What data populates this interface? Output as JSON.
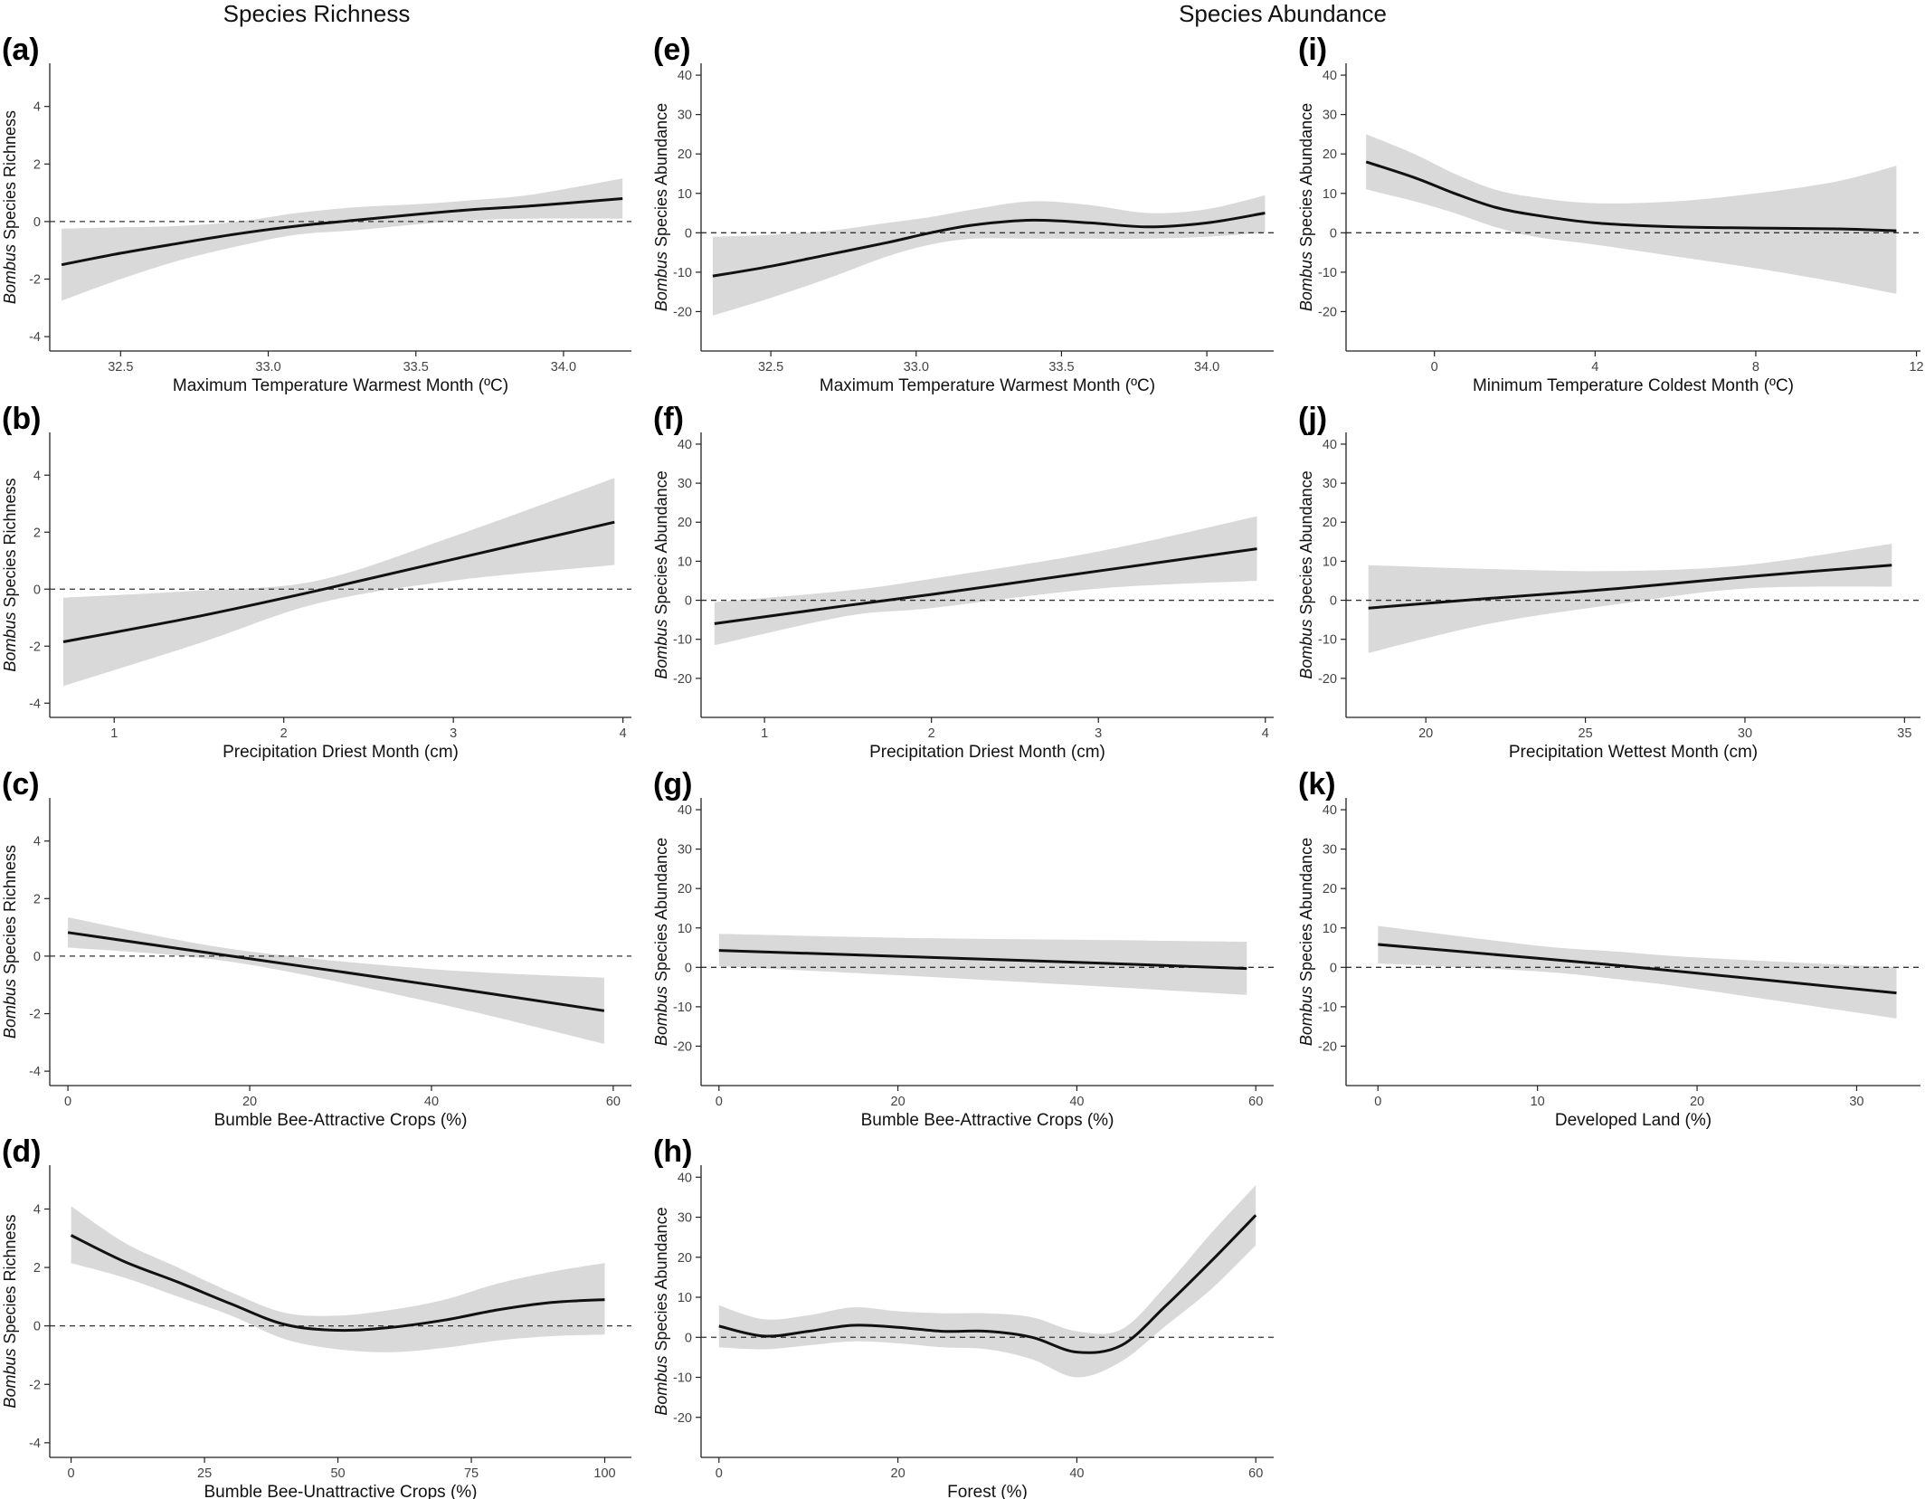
{
  "headers": {
    "richness": "Species Richness",
    "abundance": "Species Abundance"
  },
  "colors": {
    "band": "#d9d9d9",
    "line": "#111111",
    "zero_line": "#333333",
    "axis": "#222222"
  },
  "chart_data": [
    {
      "type": "line",
      "panel": "(a)",
      "title": "",
      "xlabel": "Maximum Temperature Warmest Month (ºC)",
      "ylabel_italic": "Bombus",
      "ylabel_rest": " Species Richness",
      "xlim": [
        32.26,
        34.23
      ],
      "ylim": [
        -4.5,
        5.5
      ],
      "xticks": [
        32.5,
        33.0,
        33.5,
        34.0
      ],
      "xtick_labels": [
        "32.5",
        "33.0",
        "33.5",
        "34.0"
      ],
      "yticks": [
        -4,
        -2,
        0,
        2,
        4
      ],
      "ytick_labels": [
        "-4",
        "-2",
        "0",
        "2",
        "4"
      ],
      "reference_line": 0,
      "x": [
        32.3,
        32.5,
        32.7,
        32.9,
        33.1,
        33.3,
        33.5,
        33.7,
        33.9,
        34.2
      ],
      "fit": [
        -1.5,
        -1.1,
        -0.75,
        -0.42,
        -0.15,
        0.05,
        0.25,
        0.42,
        0.55,
        0.8
      ],
      "lower": [
        -2.75,
        -2.0,
        -1.35,
        -0.85,
        -0.45,
        -0.3,
        -0.1,
        0.05,
        0.1,
        0.1
      ],
      "upper": [
        -0.25,
        -0.2,
        -0.15,
        0.0,
        0.3,
        0.5,
        0.6,
        0.75,
        0.95,
        1.5
      ]
    },
    {
      "type": "line",
      "panel": "(b)",
      "title": "",
      "xlabel": "Precipitation Driest Month (cm)",
      "ylabel_italic": "Bombus",
      "ylabel_rest": " Species Richness",
      "xlim": [
        0.62,
        4.05
      ],
      "ylim": [
        -4.5,
        5.5
      ],
      "xticks": [
        1,
        2,
        3,
        4
      ],
      "xtick_labels": [
        "1",
        "2",
        "3",
        "4"
      ],
      "yticks": [
        -4,
        -2,
        0,
        2,
        4
      ],
      "ytick_labels": [
        "-4",
        "-2",
        "0",
        "2",
        "4"
      ],
      "reference_line": 0,
      "x": [
        0.7,
        1.5,
        2.2,
        3.0,
        3.95
      ],
      "fit": [
        -1.85,
        -0.95,
        -0.05,
        1.05,
        2.35
      ],
      "lower": [
        -3.4,
        -1.9,
        -0.5,
        0.3,
        0.85
      ],
      "upper": [
        -0.3,
        -0.05,
        0.3,
        1.85,
        3.9
      ]
    },
    {
      "type": "line",
      "panel": "(c)",
      "title": "",
      "xlabel": "Bumble Bee-Attractive Crops (%)",
      "ylabel_italic": "Bombus",
      "ylabel_rest": " Species Richness",
      "xlim": [
        -2,
        62
      ],
      "ylim": [
        -4.5,
        5.5
      ],
      "xticks": [
        0,
        20,
        40,
        60
      ],
      "xtick_labels": [
        "0",
        "20",
        "40",
        "60"
      ],
      "yticks": [
        -4,
        -2,
        0,
        2,
        4
      ],
      "ytick_labels": [
        "-4",
        "-2",
        "0",
        "2",
        "4"
      ],
      "reference_line": 0,
      "x": [
        0,
        18,
        40,
        59
      ],
      "fit": [
        0.82,
        0.0,
        -1.0,
        -1.9
      ],
      "lower": [
        0.3,
        -0.2,
        -1.6,
        -3.05
      ],
      "upper": [
        1.35,
        0.25,
        -0.45,
        -0.75
      ]
    },
    {
      "type": "line",
      "panel": "(d)",
      "title": "",
      "xlabel": "Bumble Bee-Unattractive Crops (%)",
      "ylabel_italic": "Bombus",
      "ylabel_rest": " Species Richness",
      "xlim": [
        -4,
        105
      ],
      "ylim": [
        -4.5,
        5.5
      ],
      "xticks": [
        0,
        25,
        50,
        75,
        100
      ],
      "xtick_labels": [
        "0",
        "25",
        "50",
        "75",
        "100"
      ],
      "yticks": [
        -4,
        -2,
        0,
        2,
        4
      ],
      "ytick_labels": [
        "-4",
        "-2",
        "0",
        "2",
        "4"
      ],
      "reference_line": 0,
      "x": [
        0,
        10,
        20,
        30,
        40,
        50,
        60,
        70,
        80,
        90,
        100
      ],
      "fit": [
        3.1,
        2.2,
        1.5,
        0.75,
        0.05,
        -0.15,
        -0.05,
        0.2,
        0.55,
        0.8,
        0.9
      ],
      "lower": [
        2.15,
        1.65,
        1.0,
        0.35,
        -0.45,
        -0.8,
        -0.9,
        -0.75,
        -0.5,
        -0.35,
        -0.3
      ],
      "upper": [
        4.1,
        2.85,
        2.0,
        1.15,
        0.45,
        0.35,
        0.55,
        0.9,
        1.45,
        1.85,
        2.15
      ]
    },
    {
      "type": "line",
      "panel": "(e)",
      "title": "",
      "xlabel": "Maximum Temperature Warmest Month (ºC)",
      "ylabel_italic": "Bombus",
      "ylabel_rest": " Species Abundance",
      "xlim": [
        32.26,
        34.23
      ],
      "ylim": [
        -30,
        43
      ],
      "xticks": [
        32.5,
        33.0,
        33.5,
        34.0
      ],
      "xtick_labels": [
        "32.5",
        "33.0",
        "33.5",
        "34.0"
      ],
      "yticks": [
        -20,
        -10,
        0,
        10,
        20,
        30,
        40
      ],
      "ytick_labels": [
        "-20",
        "-10",
        "0",
        "10",
        "20",
        "30",
        "40"
      ],
      "reference_line": 0,
      "x": [
        32.3,
        32.5,
        32.7,
        32.9,
        33.05,
        33.2,
        33.4,
        33.6,
        33.8,
        34.0,
        34.2
      ],
      "fit": [
        -11,
        -8.5,
        -5.5,
        -2.5,
        0.0,
        2.0,
        3.2,
        2.5,
        1.5,
        2.5,
        5.0
      ],
      "lower": [
        -21,
        -16.5,
        -11.5,
        -6,
        -3,
        -1.5,
        -1.5,
        -1.5,
        -1.5,
        -1,
        0
      ],
      "upper": [
        -1,
        -0.5,
        0.5,
        2.5,
        4,
        6,
        8,
        7,
        5,
        6,
        9.5
      ]
    },
    {
      "type": "line",
      "panel": "(f)",
      "title": "",
      "xlabel": "Precipitation Driest Month (cm)",
      "ylabel_italic": "Bombus",
      "ylabel_rest": " Species Abundance",
      "xlim": [
        0.62,
        4.05
      ],
      "ylim": [
        -30,
        43
      ],
      "xticks": [
        1,
        2,
        3,
        4
      ],
      "xtick_labels": [
        "1",
        "2",
        "3",
        "4"
      ],
      "yticks": [
        -20,
        -10,
        0,
        10,
        20,
        30,
        40
      ],
      "ytick_labels": [
        "-20",
        "-10",
        "0",
        "10",
        "20",
        "30",
        "40"
      ],
      "reference_line": 0,
      "x": [
        0.7,
        1.5,
        2.0,
        3.0,
        3.95
      ],
      "fit": [
        -6,
        -1.3,
        1.5,
        7.5,
        13.2
      ],
      "lower": [
        -11.5,
        -4,
        -2,
        3,
        5
      ],
      "upper": [
        -0.5,
        2.5,
        5.5,
        12.5,
        21.5
      ]
    },
    {
      "type": "line",
      "panel": "(g)",
      "title": "",
      "xlabel": "Bumble Bee-Attractive Crops (%)",
      "ylabel_italic": "Bombus",
      "ylabel_rest": " Species Abundance",
      "xlim": [
        -2,
        62
      ],
      "ylim": [
        -30,
        43
      ],
      "xticks": [
        0,
        20,
        40,
        60
      ],
      "xtick_labels": [
        "0",
        "20",
        "40",
        "60"
      ],
      "yticks": [
        -20,
        -10,
        0,
        10,
        20,
        30,
        40
      ],
      "ytick_labels": [
        "-20",
        "-10",
        "0",
        "10",
        "20",
        "30",
        "40"
      ],
      "reference_line": 0,
      "x": [
        0,
        20,
        40,
        59
      ],
      "fit": [
        4.3,
        2.8,
        1.3,
        -0.3
      ],
      "lower": [
        0.3,
        -2,
        -4.5,
        -7
      ],
      "upper": [
        8.5,
        7.5,
        7,
        6.5
      ]
    },
    {
      "type": "line",
      "panel": "(h)",
      "title": "",
      "xlabel": "Forest (%)",
      "ylabel_italic": "Bombus",
      "ylabel_rest": " Species Abundance",
      "xlim": [
        -2,
        62
      ],
      "ylim": [
        -30,
        43
      ],
      "xticks": [
        0,
        20,
        40,
        60
      ],
      "xtick_labels": [
        "0",
        "20",
        "40",
        "60"
      ],
      "yticks": [
        -20,
        -10,
        0,
        10,
        20,
        30,
        40
      ],
      "ytick_labels": [
        "-20",
        "-10",
        "0",
        "10",
        "20",
        "30",
        "40"
      ],
      "reference_line": 0,
      "x": [
        0,
        5,
        10,
        15,
        20,
        25,
        30,
        35,
        40,
        45,
        50,
        55,
        60
      ],
      "fit": [
        2.8,
        0.3,
        1.5,
        3.0,
        2.5,
        1.5,
        1.5,
        0.0,
        -3.7,
        -2.0,
        8.0,
        19.0,
        30.5
      ],
      "lower": [
        -2.5,
        -3,
        -2,
        -1,
        -1.5,
        -2.5,
        -3,
        -5.5,
        -10,
        -6,
        3,
        12,
        23
      ],
      "upper": [
        8,
        4.5,
        5.5,
        7.5,
        6.5,
        6,
        6,
        5,
        1.5,
        2,
        13,
        26,
        38
      ]
    },
    {
      "type": "line",
      "panel": "(i)",
      "title": "",
      "xlabel": "Minimum Temperature Coldest Month (ºC)",
      "ylabel_italic": "Bombus",
      "ylabel_rest": " Species Abundance",
      "xlim": [
        -2.2,
        12.1
      ],
      "ylim": [
        -30,
        43
      ],
      "xticks": [
        0,
        4,
        8,
        12
      ],
      "xtick_labels": [
        "0",
        "4",
        "8",
        "12"
      ],
      "yticks": [
        -20,
        -10,
        0,
        10,
        20,
        30,
        40
      ],
      "ytick_labels": [
        "-20",
        "-10",
        "0",
        "10",
        "20",
        "30",
        "40"
      ],
      "reference_line": 0,
      "x": [
        -1.7,
        -0.5,
        0.5,
        1.5,
        2.5,
        4,
        6,
        8,
        10,
        11.5
      ],
      "fit": [
        18,
        14,
        10,
        6.5,
        4.5,
        2.5,
        1.5,
        1.2,
        1.0,
        0.5
      ],
      "lower": [
        11,
        8,
        5,
        1.5,
        -1,
        -3,
        -6,
        -9,
        -12.5,
        -15.5
      ],
      "upper": [
        25,
        20,
        15,
        11,
        9,
        7.5,
        8,
        10,
        13,
        17
      ]
    },
    {
      "type": "line",
      "panel": "(j)",
      "title": "",
      "xlabel": "Precipitation Wettest Month (cm)",
      "ylabel_italic": "Bombus",
      "ylabel_rest": " Species Abundance",
      "xlim": [
        17.5,
        35.5
      ],
      "ylim": [
        -30,
        43
      ],
      "xticks": [
        20,
        25,
        30,
        35
      ],
      "xtick_labels": [
        "20",
        "25",
        "30",
        "35"
      ],
      "yticks": [
        -20,
        -10,
        0,
        10,
        20,
        30,
        40
      ],
      "ytick_labels": [
        "-20",
        "-10",
        "0",
        "10",
        "20",
        "30",
        "40"
      ],
      "reference_line": 0,
      "x": [
        18.2,
        22,
        26,
        30,
        34.6
      ],
      "fit": [
        -2,
        0.5,
        3,
        6,
        9
      ],
      "lower": [
        -13.5,
        -6,
        -1,
        3,
        3.5
      ],
      "upper": [
        9,
        8,
        7.5,
        9,
        14.5
      ]
    },
    {
      "type": "line",
      "panel": "(k)",
      "title": "",
      "xlabel": "Developed Land (%)",
      "ylabel_italic": "Bombus",
      "ylabel_rest": " Species Abundance",
      "xlim": [
        -2,
        34
      ],
      "ylim": [
        -30,
        43
      ],
      "xticks": [
        0,
        10,
        20,
        30
      ],
      "xtick_labels": [
        "0",
        "10",
        "20",
        "30"
      ],
      "yticks": [
        -20,
        -10,
        0,
        10,
        20,
        30,
        40
      ],
      "ytick_labels": [
        "-20",
        "-10",
        "0",
        "10",
        "20",
        "30",
        "40"
      ],
      "reference_line": 0,
      "x": [
        0,
        10,
        15,
        20,
        32.5
      ],
      "fit": [
        5.8,
        2.3,
        0.5,
        -1.5,
        -6.5
      ],
      "lower": [
        1,
        -1,
        -3,
        -5.5,
        -13
      ],
      "upper": [
        10.5,
        5.5,
        4,
        2.5,
        0
      ]
    }
  ]
}
